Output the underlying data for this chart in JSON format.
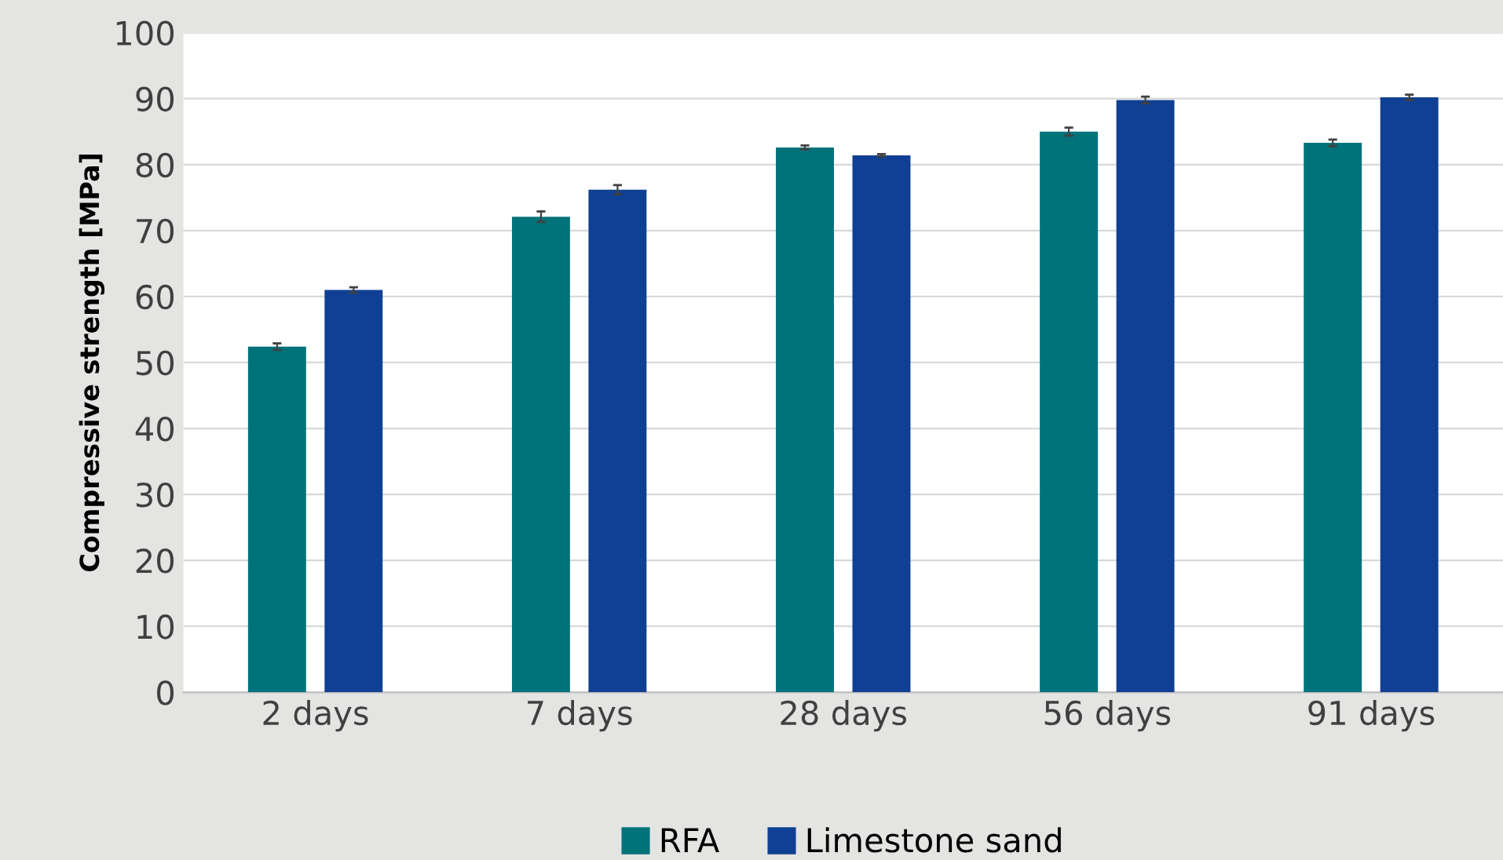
{
  "chart_data": {
    "type": "bar",
    "ylabel": "Compressive strength [MPa]",
    "categories": [
      "2 days",
      "7 days",
      "28 days",
      "56 days",
      "91 days"
    ],
    "series": [
      {
        "name": "RFA",
        "color": "#00727a",
        "values": [
          52.4,
          72.1,
          82.6,
          85.0,
          83.3
        ],
        "errors": [
          0.5,
          0.8,
          0.3,
          0.6,
          0.5
        ]
      },
      {
        "name": "Limestone sand",
        "color": "#104093",
        "values": [
          61.0,
          76.2,
          81.4,
          89.8,
          90.2
        ],
        "errors": [
          0.4,
          0.7,
          0.2,
          0.5,
          0.4
        ]
      }
    ],
    "ylim": [
      0,
      100
    ],
    "yticks": [
      0,
      10,
      20,
      30,
      40,
      50,
      60,
      70,
      80,
      90,
      100
    ],
    "grid": "y",
    "legend": "bottom"
  }
}
